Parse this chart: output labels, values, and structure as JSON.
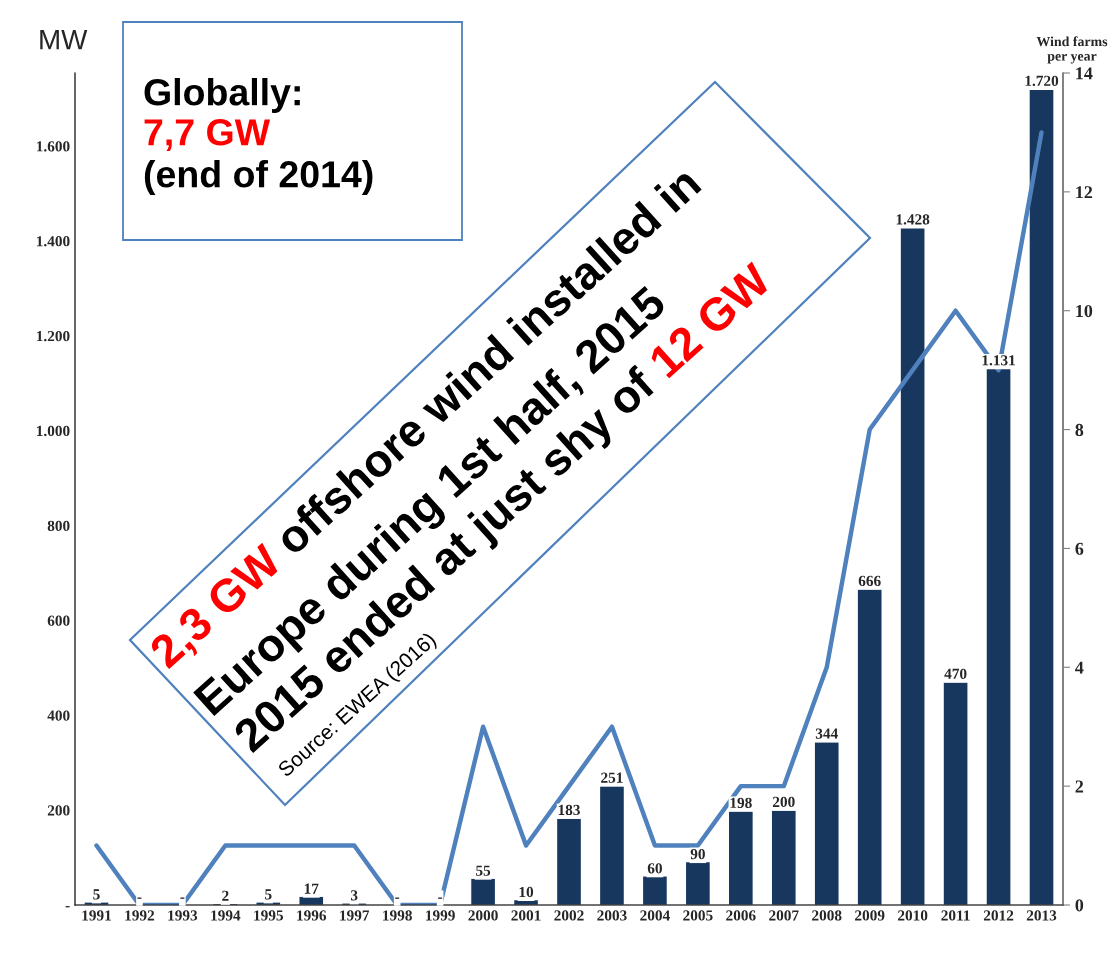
{
  "chart_data": {
    "type": "bar",
    "ylabel": "MW",
    "y2label": "Wind farms\nper year",
    "categories": [
      "1991",
      "1992",
      "1993",
      "1994",
      "1995",
      "1996",
      "1997",
      "1998",
      "1999",
      "2000",
      "2001",
      "2002",
      "2003",
      "2004",
      "2005",
      "2006",
      "2007",
      "2008",
      "2009",
      "2010",
      "2011",
      "2012",
      "2013"
    ],
    "series": [
      {
        "color": "#17375e",
        "values": [
          5,
          0,
          0,
          2,
          5,
          17,
          3,
          0,
          0,
          55,
          10,
          183,
          251,
          60,
          90,
          198,
          200,
          344,
          666,
          1428,
          470,
          1131,
          1720
        ],
        "value_labels": [
          "5",
          "-",
          "-",
          "2",
          "5",
          "17",
          "3",
          "-",
          "-",
          "55",
          "10",
          "183",
          "251",
          "60",
          "90",
          "198",
          "200",
          "344",
          "666",
          "1.428",
          "470",
          "1.131",
          "1.720"
        ]
      },
      {
        "type": "line",
        "axis": "y2",
        "color": "#4f81bd",
        "values": [
          1,
          0,
          0,
          1,
          1,
          1,
          1,
          0,
          0,
          3,
          1,
          2,
          3,
          1,
          1,
          2,
          2,
          4,
          8,
          9,
          10,
          9,
          13
        ]
      }
    ],
    "ylim": [
      0,
      1754
    ],
    "yticks": [
      {
        "value": 0,
        "label": "-"
      },
      200,
      400,
      600,
      800,
      {
        "value": 1000,
        "label": "1.000"
      },
      {
        "value": 1200,
        "label": "1.200"
      },
      {
        "value": 1400,
        "label": "1.400"
      },
      {
        "value": 1600,
        "label": "1.600"
      }
    ],
    "y2lim": [
      0,
      14
    ],
    "y2ticks": [
      0,
      2,
      4,
      6,
      8,
      10,
      12,
      14
    ],
    "grid": false,
    "legend": false,
    "marker": "none",
    "line_style": "solid",
    "annotations": [
      "Globally:",
      "7,7 GW",
      "(end of 2014)",
      "2,3 GW",
      "offshore wind installed in",
      "Europe during 1st half, 2015",
      "2015 ended at just shy of",
      "12 GW",
      "Source: EWEA (2016)"
    ]
  }
}
